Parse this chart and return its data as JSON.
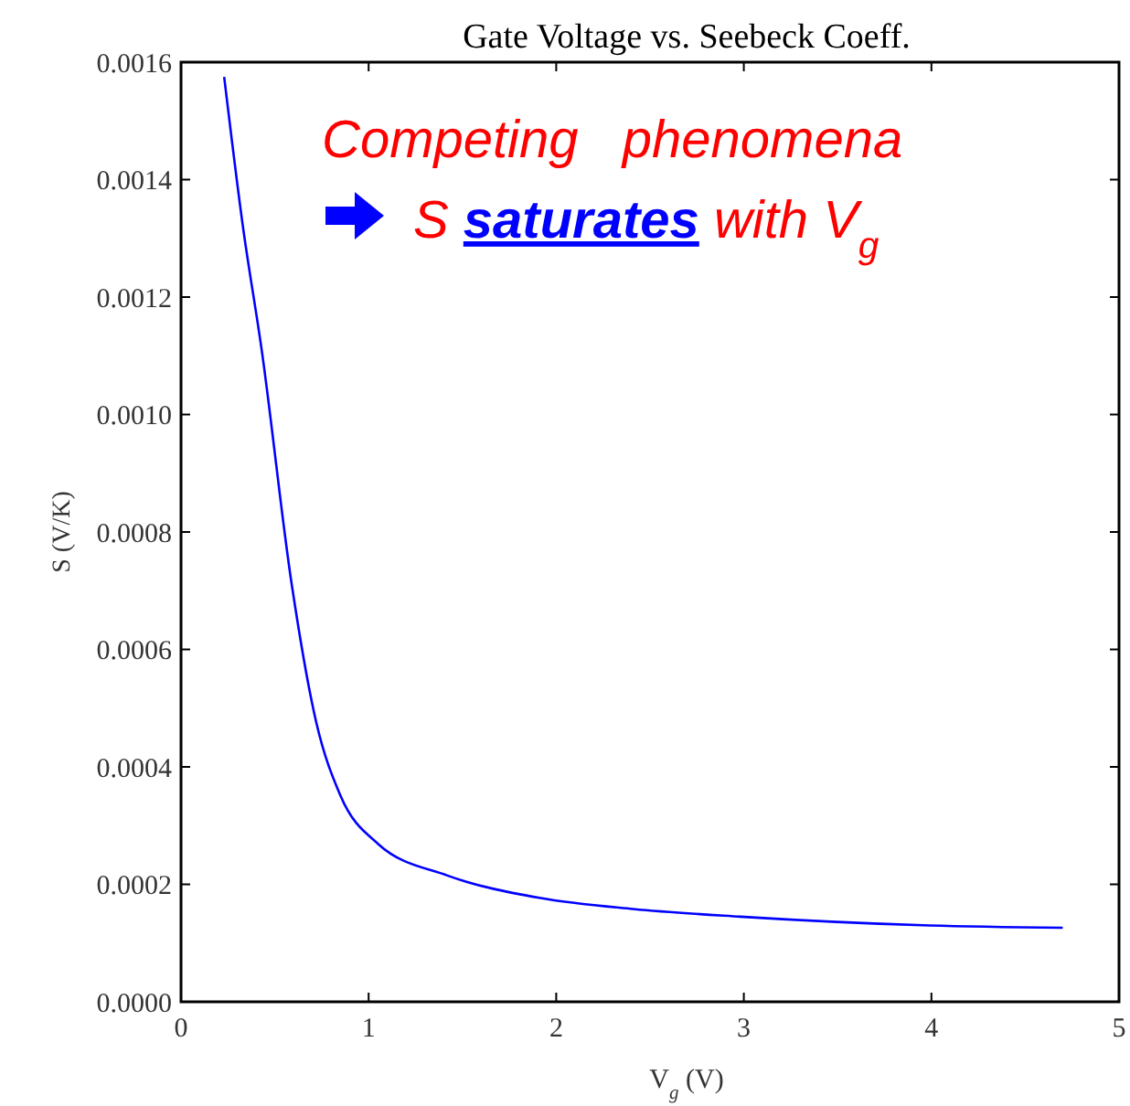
{
  "chart_data": {
    "type": "line",
    "title": "Gate Voltage vs. Seebeck Coeff.",
    "xlabel": "V$_{g}$ (V)",
    "ylabel": "S (V/K)",
    "x": [
      0.23,
      0.33,
      0.43,
      0.59,
      0.72,
      0.85,
      1.05,
      1.42,
      1.91,
      2.41,
      2.98,
      3.99,
      4.7
    ],
    "series": [
      {
        "color": "#0000ff",
        "values": [
          0.001575,
          0.00132,
          0.00111,
          0.000711,
          0.000477,
          0.000351,
          0.000269,
          0.000215,
          0.000177,
          0.000158,
          0.000145,
          0.00013,
          0.000126
        ]
      }
    ],
    "xlim": [
      0,
      5
    ],
    "xticks": [
      0,
      1,
      2,
      3,
      4,
      5
    ],
    "ylim": [
      0,
      0.0016
    ],
    "yticks": [
      {
        "value": 0,
        "label": "0.0000"
      },
      {
        "value": 0.0002,
        "label": "0.0002"
      },
      {
        "value": 0.0004,
        "label": "0.0004"
      },
      {
        "value": 0.0006,
        "label": "0.0006"
      },
      {
        "value": 0.0008,
        "label": "0.0008"
      },
      {
        "value": 0.001,
        "label": "0.0010"
      },
      {
        "value": 0.0012,
        "label": "0.0012"
      },
      {
        "value": 0.0014,
        "label": "0.0014"
      },
      {
        "value": 0.0016,
        "label": "0.0016"
      }
    ],
    "annotations": [
      "Competing   phenomena",
      "S saturates with V$_{g}$"
    ],
    "grid": false,
    "marker": "none",
    "line_style": "solid"
  }
}
